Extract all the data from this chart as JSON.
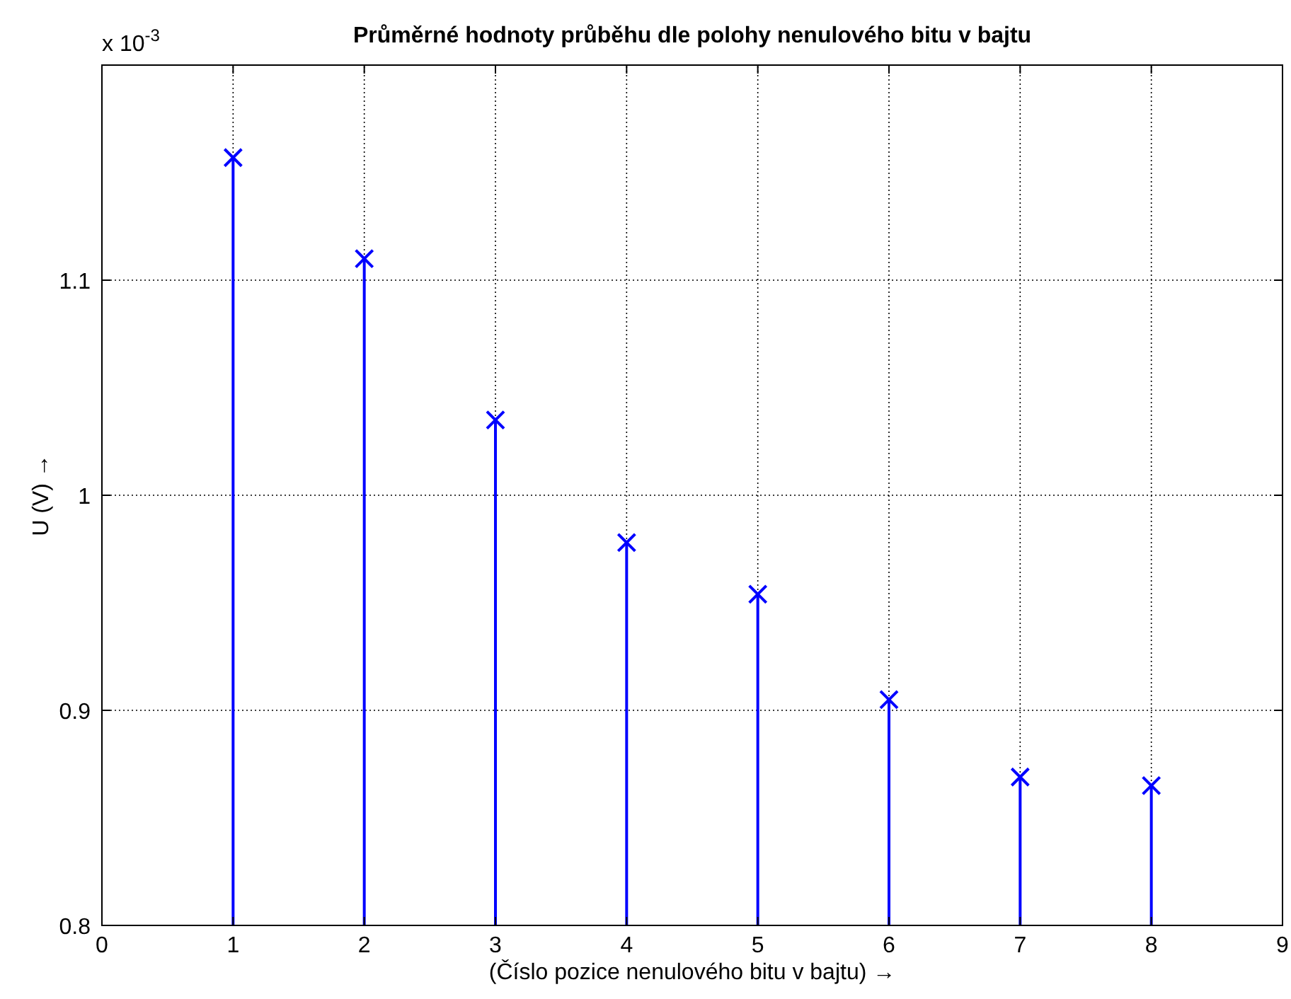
{
  "chart_data": {
    "type": "lollipop",
    "title": "Průměrné hodnoty průběhu dle polohy nenulového bitu v bajtu",
    "xlabel": "(Číslo pozice nenulového bitu v bajtu) →",
    "ylabel": "U (V) →",
    "annotations": [
      "x 10$^{-3}$"
    ],
    "x": [
      1,
      2,
      3,
      4,
      5,
      6,
      7,
      8
    ],
    "series": [
      {
        "color": "#0000ff",
        "values": [
          1.157,
          1.11,
          1.035,
          0.978,
          0.954,
          0.905,
          0.869,
          0.865
        ]
      }
    ],
    "xlim": [
      0,
      9
    ],
    "xticks": [
      0,
      1,
      2,
      3,
      4,
      5,
      6,
      7,
      8,
      9
    ],
    "ylim": [
      0.8,
      1.2
    ],
    "yticks": [
      0.8,
      0.9,
      1,
      1.1,
      {
        "value": 1.2,
        "label": null
      }
    ],
    "grid": true,
    "marker": "cross",
    "line_style": "solid"
  }
}
